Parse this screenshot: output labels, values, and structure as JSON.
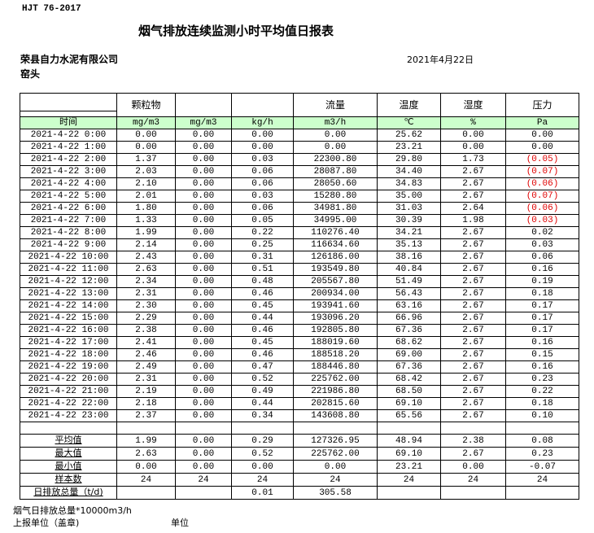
{
  "standard": "HJT  76-2017",
  "title": "烟气排放连续监测小时平均值日报表",
  "company": "荣县自力水泥有限公司",
  "date": "2021年4月22日",
  "location": "窑头",
  "colors": {
    "unit_row_bg": "#ccffcc",
    "negative_text": "#e00000"
  },
  "header": [
    "",
    "颗粒物",
    "",
    "",
    "流量",
    "温度",
    "湿度",
    "压力"
  ],
  "units": [
    "时间",
    "mg/m3",
    "mg/m3",
    "kg/h",
    "m3/h",
    "℃",
    "%",
    "Pa"
  ],
  "rows": [
    [
      "2021-4-22 0:00",
      "0.00",
      "0.00",
      "0.00",
      "0.00",
      "25.62",
      "0.00",
      "0.00"
    ],
    [
      "2021-4-22 1:00",
      "0.00",
      "0.00",
      "0.00",
      "0.00",
      "23.21",
      "0.00",
      "0.00"
    ],
    [
      "2021-4-22 2:00",
      "1.37",
      "0.00",
      "0.03",
      "22300.80",
      "29.80",
      "1.73",
      "(0.05)"
    ],
    [
      "2021-4-22 3:00",
      "2.03",
      "0.00",
      "0.06",
      "28087.80",
      "34.40",
      "2.67",
      "(0.07)"
    ],
    [
      "2021-4-22 4:00",
      "2.10",
      "0.00",
      "0.06",
      "28050.60",
      "34.83",
      "2.67",
      "(0.06)"
    ],
    [
      "2021-4-22 5:00",
      "2.01",
      "0.00",
      "0.03",
      "15280.80",
      "35.00",
      "2.67",
      "(0.07)"
    ],
    [
      "2021-4-22 6:00",
      "1.80",
      "0.00",
      "0.06",
      "34981.80",
      "31.03",
      "2.64",
      "(0.06)"
    ],
    [
      "2021-4-22 7:00",
      "1.33",
      "0.00",
      "0.05",
      "34995.00",
      "30.39",
      "1.98",
      "(0.03)"
    ],
    [
      "2021-4-22 8:00",
      "1.99",
      "0.00",
      "0.22",
      "110276.40",
      "34.21",
      "2.67",
      "0.02"
    ],
    [
      "2021-4-22 9:00",
      "2.14",
      "0.00",
      "0.25",
      "116634.60",
      "35.13",
      "2.67",
      "0.03"
    ],
    [
      "2021-4-22 10:00",
      "2.43",
      "0.00",
      "0.31",
      "126186.00",
      "38.16",
      "2.67",
      "0.06"
    ],
    [
      "2021-4-22 11:00",
      "2.63",
      "0.00",
      "0.51",
      "193549.80",
      "40.84",
      "2.67",
      "0.16"
    ],
    [
      "2021-4-22 12:00",
      "2.34",
      "0.00",
      "0.48",
      "205567.80",
      "51.49",
      "2.67",
      "0.19"
    ],
    [
      "2021-4-22 13:00",
      "2.31",
      "0.00",
      "0.46",
      "200934.00",
      "56.43",
      "2.67",
      "0.18"
    ],
    [
      "2021-4-22 14:00",
      "2.30",
      "0.00",
      "0.45",
      "193941.60",
      "63.16",
      "2.67",
      "0.17"
    ],
    [
      "2021-4-22 15:00",
      "2.29",
      "0.00",
      "0.44",
      "193096.20",
      "66.96",
      "2.67",
      "0.17"
    ],
    [
      "2021-4-22 16:00",
      "2.38",
      "0.00",
      "0.46",
      "192805.80",
      "67.36",
      "2.67",
      "0.17"
    ],
    [
      "2021-4-22 17:00",
      "2.41",
      "0.00",
      "0.45",
      "188019.60",
      "68.62",
      "2.67",
      "0.16"
    ],
    [
      "2021-4-22 18:00",
      "2.46",
      "0.00",
      "0.46",
      "188518.20",
      "69.00",
      "2.67",
      "0.15"
    ],
    [
      "2021-4-22 19:00",
      "2.49",
      "0.00",
      "0.47",
      "188446.80",
      "67.36",
      "2.67",
      "0.16"
    ],
    [
      "2021-4-22 20:00",
      "2.31",
      "0.00",
      "0.52",
      "225762.00",
      "68.42",
      "2.67",
      "0.23"
    ],
    [
      "2021-4-22 21:00",
      "2.19",
      "0.00",
      "0.49",
      "221986.80",
      "68.50",
      "2.67",
      "0.22"
    ],
    [
      "2021-4-22 22:00",
      "2.18",
      "0.00",
      "0.44",
      "202815.60",
      "69.10",
      "2.67",
      "0.18"
    ],
    [
      "2021-4-22 23:00",
      "2.37",
      "0.00",
      "0.34",
      "143608.80",
      "65.56",
      "2.67",
      "0.10"
    ]
  ],
  "summary": [
    [
      "平均值",
      "1.99",
      "0.00",
      "0.29",
      "127326.95",
      "48.94",
      "2.38",
      "0.08"
    ],
    [
      "最大值",
      "2.63",
      "0.00",
      "0.52",
      "225762.00",
      "69.10",
      "2.67",
      "0.23"
    ],
    [
      "最小值",
      "0.00",
      "0.00",
      "0.00",
      "0.00",
      "23.21",
      "0.00",
      "-0.07"
    ],
    [
      "样本数",
      "24",
      "24",
      "24",
      "24",
      "24",
      "24",
      "24"
    ],
    [
      "日排放总量（t/d)",
      "",
      "",
      "0.01",
      "305.58",
      "",
      "",
      ""
    ]
  ],
  "footer": {
    "total_note": "烟气日排放总量*10000m3/h",
    "report_unit": "上报单位（盖章)",
    "unit": "单位"
  }
}
